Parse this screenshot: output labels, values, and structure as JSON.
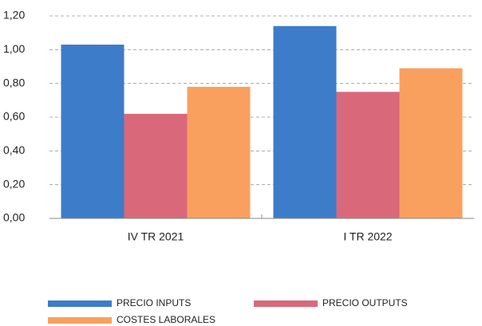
{
  "chart_data": {
    "type": "bar",
    "categories": [
      "IV TR 2021",
      "I TR 2022"
    ],
    "series": [
      {
        "name": "PRECIO INPUTS",
        "color": "#3d7cc9",
        "values": [
          1.03,
          1.14
        ]
      },
      {
        "name": "PRECIO OUTPUTS",
        "color": "#d9687a",
        "values": [
          0.62,
          0.75
        ]
      },
      {
        "name": "COSTES LABORALES",
        "color": "#f9a05f",
        "values": [
          0.78,
          0.89
        ]
      }
    ],
    "ylim": [
      0,
      1.2
    ],
    "yticks": [
      {
        "value": 0,
        "label": "0,00"
      },
      {
        "value": 0.2,
        "label": "0,20"
      },
      {
        "value": 0.4,
        "label": "0,40"
      },
      {
        "value": 0.6,
        "label": "0,60"
      },
      {
        "value": 0.8,
        "label": "0,80"
      },
      {
        "value": 1.0,
        "label": "1,00"
      },
      {
        "value": 1.2,
        "label": "1,20"
      }
    ],
    "grid": true
  }
}
